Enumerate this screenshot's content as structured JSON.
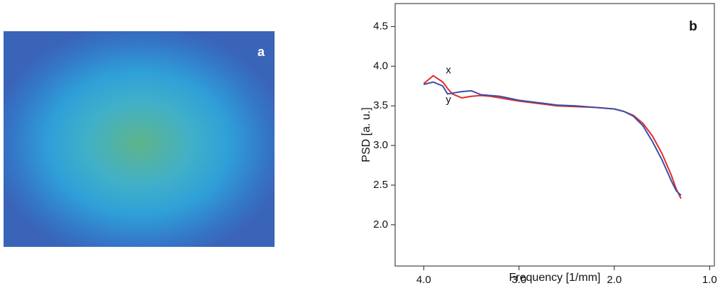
{
  "panel_a": {
    "label": "a"
  },
  "chart_data": {
    "type": "line",
    "panel_label": "b",
    "x_label": "Frequency [1/mm]",
    "y_label": "PSD [a. u.]",
    "xlim": [
      4.3,
      0.95
    ],
    "ylim": [
      1.48,
      4.79
    ],
    "xticks": [
      {
        "value": 4,
        "label": "4.0"
      },
      {
        "value": 3,
        "label": "3.0"
      },
      {
        "value": 2,
        "label": "2.0"
      },
      {
        "value": 1,
        "label": "1.0"
      }
    ],
    "yticks": [
      {
        "value": 2,
        "label": "2.0"
      },
      2.5,
      {
        "value": 3,
        "label": "3.0"
      },
      3.5,
      {
        "value": 4,
        "label": "4.0"
      },
      4.5
    ],
    "x": [
      4.0,
      3.9,
      3.8,
      3.75,
      3.7,
      3.6,
      3.5,
      3.4,
      3.3,
      3.2,
      3.0,
      2.8,
      2.6,
      2.4,
      2.2,
      2.0,
      1.9,
      1.8,
      1.7,
      1.6,
      1.5,
      1.4,
      1.35,
      1.3
    ],
    "series": [
      {
        "name": "x",
        "color": "#e32a2a",
        "values": [
          3.78,
          3.88,
          3.8,
          3.72,
          3.65,
          3.6,
          3.62,
          3.63,
          3.62,
          3.6,
          3.56,
          3.53,
          3.5,
          3.49,
          3.48,
          3.46,
          3.43,
          3.38,
          3.28,
          3.12,
          2.9,
          2.62,
          2.45,
          2.33
        ]
      },
      {
        "name": "y",
        "color": "#3a4fa8",
        "values": [
          3.77,
          3.8,
          3.75,
          3.65,
          3.66,
          3.68,
          3.69,
          3.64,
          3.63,
          3.62,
          3.57,
          3.54,
          3.51,
          3.5,
          3.48,
          3.46,
          3.43,
          3.37,
          3.25,
          3.05,
          2.82,
          2.55,
          2.43,
          2.37
        ]
      }
    ]
  }
}
